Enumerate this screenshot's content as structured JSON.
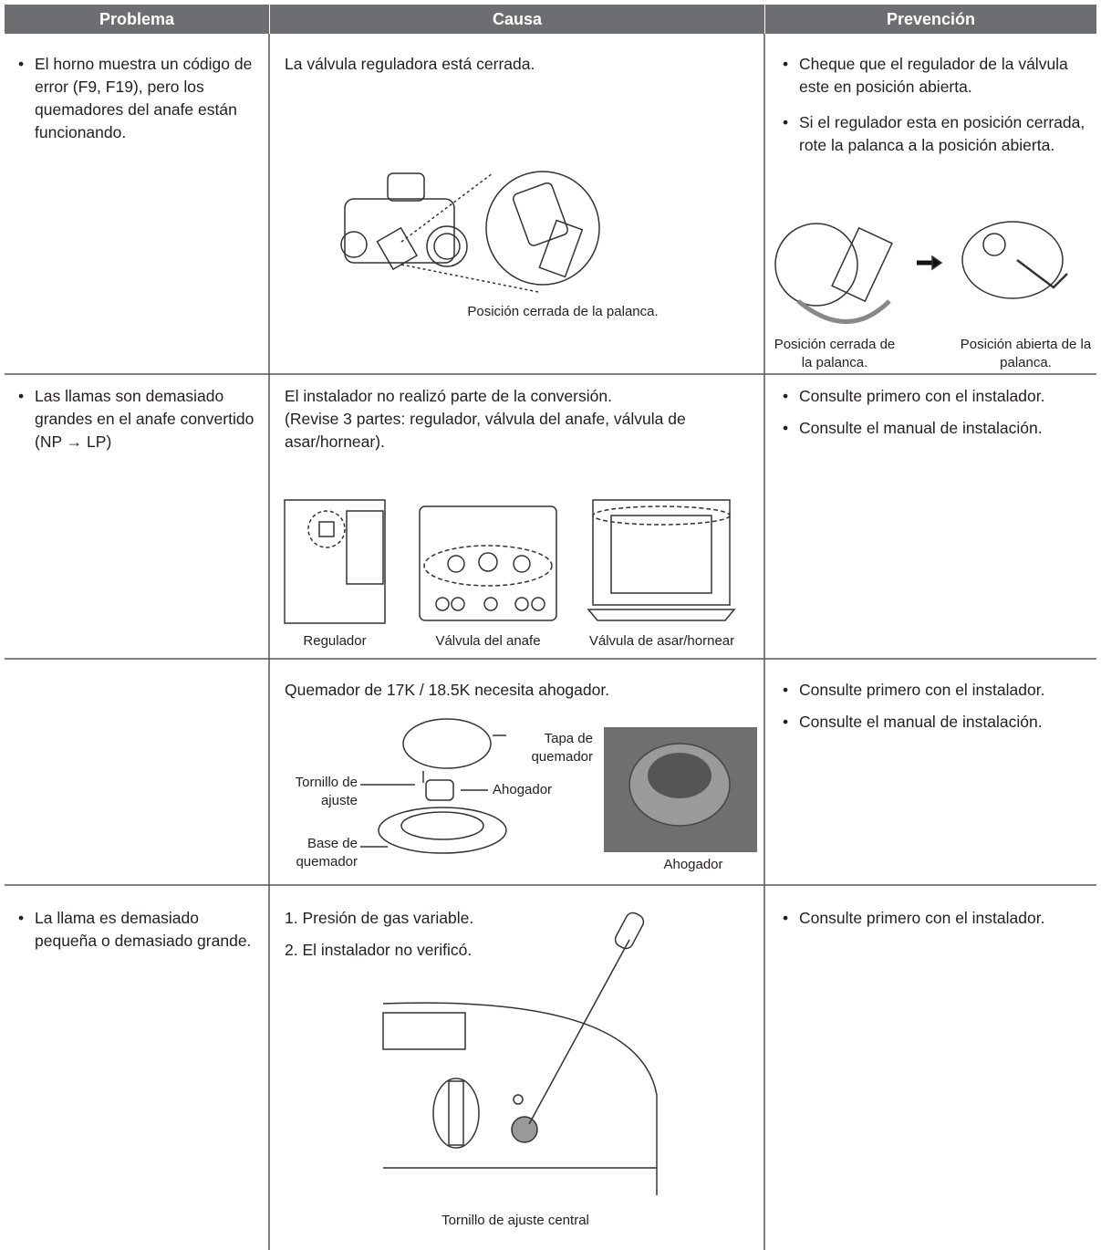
{
  "table": {
    "headers": [
      "Problema",
      "Causa",
      "Prevención"
    ],
    "rows": [
      {
        "problem": [
          "El horno muestra un código de error (F9, F19), pero los quemadores del anafe están funcionando."
        ],
        "cause": [
          "La válvula reguladora está cerrada."
        ],
        "cause_figure_labels": [
          "Posición cerrada de la palanca."
        ],
        "prevention": [
          "Cheque que el regulador de la válvula este en posición abierta.",
          "Si el regulador esta en posición cerrada, rote la palanca a la posición abierta."
        ],
        "prevention_figure_labels": [
          "Posición cerrada de la palanca.",
          "Posición abierta de la palanca."
        ]
      },
      {
        "problem": [
          "Las llamas son demasiado grandes en el anafe convertido (NP → LP)"
        ],
        "cause": [
          "El instalador no realizó parte de la conversión.",
          "(Revise 3 partes: regulador, válvula del anafe, válvula de asar/hornear)."
        ],
        "cause_figure_labels": [
          "Regulador",
          "Válvula del anafe",
          "Válvula de asar/hornear"
        ],
        "prevention": [
          "Consulte primero con el instalador.",
          "Consulte el manual de instalación."
        ]
      },
      {
        "cause": [
          "Quemador de 17K / 18.5K necesita ahogador."
        ],
        "cause_figure_labels": [
          "Tapa de quemador",
          "Tornillo de ajuste",
          "Ahogador",
          "Base de quemador",
          "Ahogador"
        ],
        "prevention": [
          "Consulte primero con el instalador.",
          "Consulte el manual de instalación."
        ]
      },
      {
        "problem": [
          "La llama es demasiado pequeña o demasiado grande."
        ],
        "cause": [
          "1. Presión de gas variable.",
          "2. El instalador no verificó."
        ],
        "cause_figure_labels": [
          "Tornillo de ajuste central"
        ],
        "prevention": [
          "Consulte primero con el instalador."
        ]
      }
    ]
  }
}
